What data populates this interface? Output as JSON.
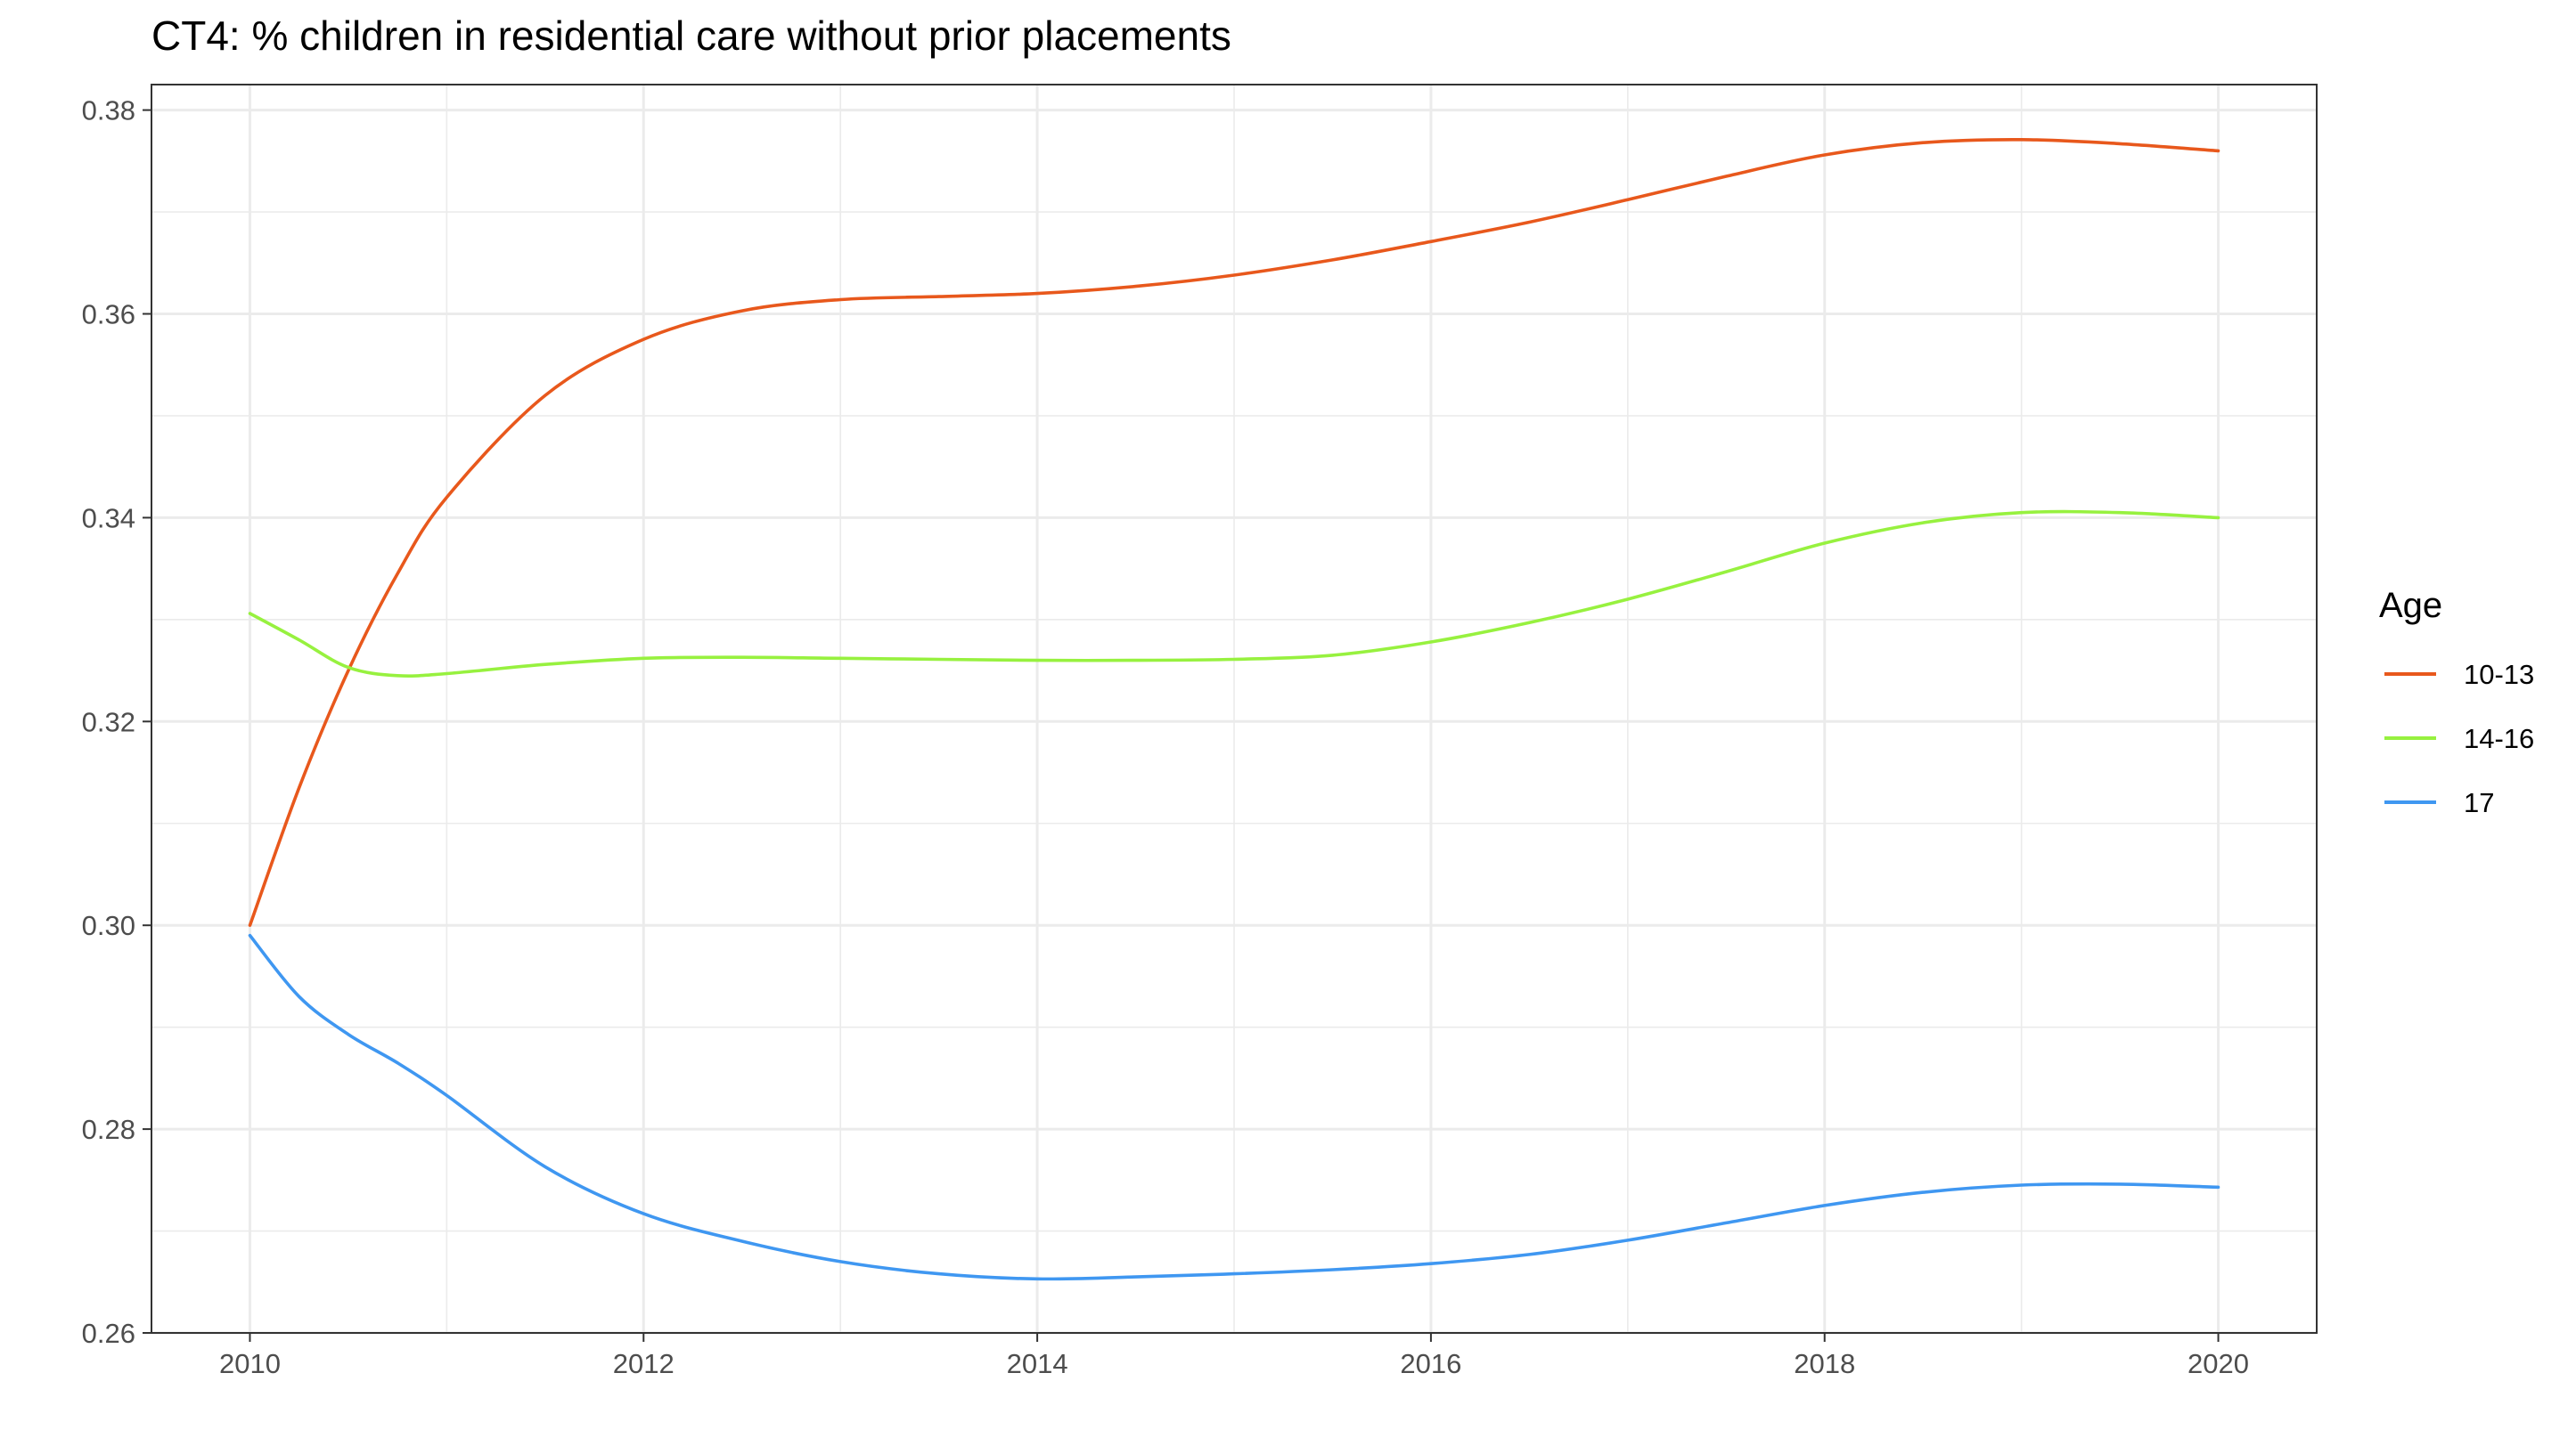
{
  "chart_data": {
    "type": "line",
    "title": "CT4: % children in residential care without prior placements",
    "xlabel": "",
    "ylabel": "",
    "xlim": [
      2009.5,
      2020.5
    ],
    "ylim": [
      0.26,
      0.3825
    ],
    "x_ticks": [
      2010,
      2012,
      2014,
      2016,
      2018,
      2020
    ],
    "y_ticks": [
      0.26,
      0.28,
      0.3,
      0.32,
      0.34,
      0.36,
      0.38
    ],
    "x_tick_labels": [
      "2010",
      "2012",
      "2014",
      "2016",
      "2018",
      "2020"
    ],
    "y_tick_labels": [
      "0.26",
      "0.28",
      "0.30",
      "0.32",
      "0.34",
      "0.36",
      "0.38"
    ],
    "grid": true,
    "legend_title": "Age",
    "legend_position": "right",
    "series": [
      {
        "name": "10-13",
        "color": "#e8581c",
        "x": [
          2010,
          2010.25,
          2010.5,
          2010.75,
          2011,
          2011.5,
          2012,
          2012.5,
          2013,
          2013.5,
          2014,
          2014.5,
          2015,
          2015.5,
          2016,
          2016.5,
          2017,
          2017.5,
          2018,
          2018.5,
          2019,
          2019.5,
          2020
        ],
        "y": [
          0.3,
          0.3135,
          0.325,
          0.3345,
          0.342,
          0.352,
          0.3575,
          0.3603,
          0.3614,
          0.3617,
          0.362,
          0.3627,
          0.3638,
          0.3653,
          0.3671,
          0.369,
          0.3712,
          0.3735,
          0.3756,
          0.3768,
          0.3771,
          0.3767,
          0.376
        ]
      },
      {
        "name": "14-16",
        "color": "#97f13f",
        "x": [
          2010,
          2010.25,
          2010.5,
          2010.75,
          2011,
          2011.5,
          2012,
          2012.5,
          2013,
          2013.5,
          2014,
          2014.5,
          2015,
          2015.5,
          2016,
          2016.5,
          2017,
          2017.5,
          2018,
          2018.5,
          2019,
          2019.5,
          2020
        ],
        "y": [
          0.3306,
          0.328,
          0.3253,
          0.3245,
          0.3247,
          0.3256,
          0.3262,
          0.3263,
          0.3262,
          0.3261,
          0.326,
          0.326,
          0.3261,
          0.3265,
          0.3278,
          0.3297,
          0.332,
          0.3347,
          0.3375,
          0.3395,
          0.3405,
          0.3405,
          0.34
        ]
      },
      {
        "name": "17",
        "color": "#3f97f1",
        "x": [
          2010,
          2010.25,
          2010.5,
          2010.75,
          2011,
          2011.5,
          2012,
          2012.5,
          2013,
          2013.5,
          2014,
          2014.5,
          2015,
          2015.5,
          2016,
          2016.5,
          2017,
          2017.5,
          2018,
          2018.5,
          2019,
          2019.5,
          2020
        ],
        "y": [
          0.299,
          0.293,
          0.2893,
          0.2865,
          0.2833,
          0.2763,
          0.2717,
          0.269,
          0.267,
          0.2658,
          0.2653,
          0.2655,
          0.2658,
          0.2662,
          0.2668,
          0.2677,
          0.2691,
          0.2708,
          0.2725,
          0.2738,
          0.2745,
          0.2746,
          0.2743
        ]
      }
    ]
  }
}
